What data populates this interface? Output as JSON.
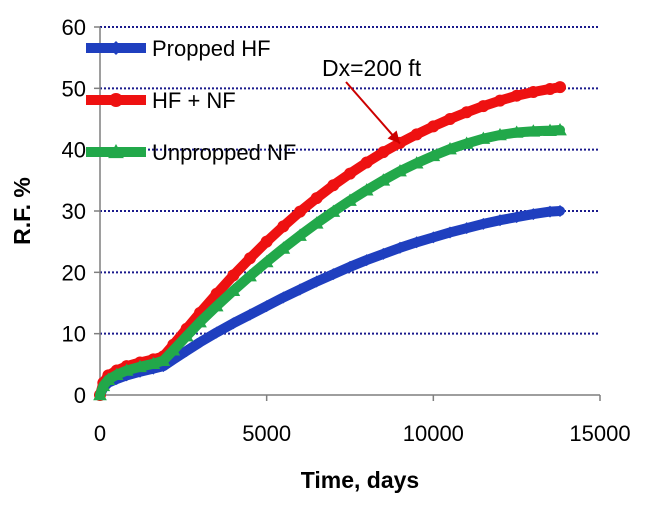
{
  "chart_data": {
    "type": "line",
    "xlabel": "Time, days",
    "ylabel": "R.F. %",
    "xlim": [
      0,
      15000
    ],
    "ylim": [
      0,
      60
    ],
    "xticks": [
      0,
      5000,
      10000,
      15000
    ],
    "yticks": [
      0,
      10,
      20,
      30,
      40,
      50,
      60
    ],
    "xtick_labels": [
      "0",
      "5000",
      "10000",
      "15000"
    ],
    "ytick_labels": [
      "0",
      "10",
      "20",
      "30",
      "40",
      "50",
      "60"
    ],
    "grid": "horizontal dotted",
    "legend_position": "top-left",
    "annotation": {
      "text": "Dx=200 ft",
      "points_to": [
        9000,
        41
      ]
    },
    "series": [
      {
        "name": "Propped HF",
        "color": "#1f3fbf",
        "marker": "diamond",
        "x": [
          0,
          100,
          250,
          500,
          800,
          1200,
          1600,
          1900,
          2200,
          2600,
          3000,
          3500,
          4000,
          4500,
          5000,
          5500,
          6000,
          6500,
          7000,
          7500,
          8000,
          8500,
          9000,
          9500,
          10000,
          10500,
          11000,
          11500,
          12000,
          12500,
          13000,
          13500,
          13800
        ],
        "y": [
          0,
          1.2,
          2.0,
          2.6,
          3.2,
          3.8,
          4.3,
          4.7,
          5.8,
          7.2,
          8.6,
          10.2,
          11.7,
          13.1,
          14.5,
          15.9,
          17.2,
          18.5,
          19.7,
          20.9,
          22.0,
          23.0,
          24.0,
          24.9,
          25.7,
          26.5,
          27.2,
          27.9,
          28.5,
          29.0,
          29.5,
          29.9,
          30.0
        ]
      },
      {
        "name": "HF + NF",
        "color": "#ee1111",
        "marker": "circle",
        "x": [
          0,
          100,
          250,
          500,
          800,
          1200,
          1600,
          1900,
          2200,
          2600,
          3000,
          3500,
          4000,
          4500,
          5000,
          5500,
          6000,
          6500,
          7000,
          7500,
          8000,
          8500,
          9000,
          9500,
          10000,
          10500,
          11000,
          11500,
          12000,
          12500,
          13000,
          13500,
          13800
        ],
        "y": [
          0,
          2.0,
          3.2,
          4.0,
          4.7,
          5.3,
          5.8,
          6.3,
          8.2,
          10.8,
          13.4,
          16.5,
          19.5,
          22.3,
          25.0,
          27.5,
          29.9,
          32.1,
          34.2,
          36.1,
          37.9,
          39.6,
          41.1,
          42.5,
          43.8,
          45.0,
          46.1,
          47.1,
          48.0,
          48.8,
          49.4,
          49.9,
          50.2
        ]
      },
      {
        "name": "Unpropped NF",
        "color": "#22a84a",
        "marker": "triangle",
        "x": [
          0,
          100,
          250,
          500,
          800,
          1200,
          1600,
          1900,
          2200,
          2600,
          3000,
          3500,
          4000,
          4500,
          5000,
          5500,
          6000,
          6500,
          7000,
          7500,
          8000,
          8500,
          9000,
          9500,
          10000,
          10500,
          11000,
          11500,
          12000,
          12500,
          13000,
          13500,
          13800
        ],
        "y": [
          0,
          1.5,
          2.5,
          3.3,
          4.0,
          4.6,
          5.1,
          5.6,
          7.3,
          9.6,
          11.9,
          14.5,
          17.0,
          19.4,
          21.7,
          23.9,
          26.0,
          28.0,
          29.9,
          31.7,
          33.4,
          35.0,
          36.5,
          37.8,
          39.0,
          40.1,
          41.0,
          41.8,
          42.4,
          42.8,
          43.0,
          43.1,
          43.2
        ]
      }
    ]
  }
}
